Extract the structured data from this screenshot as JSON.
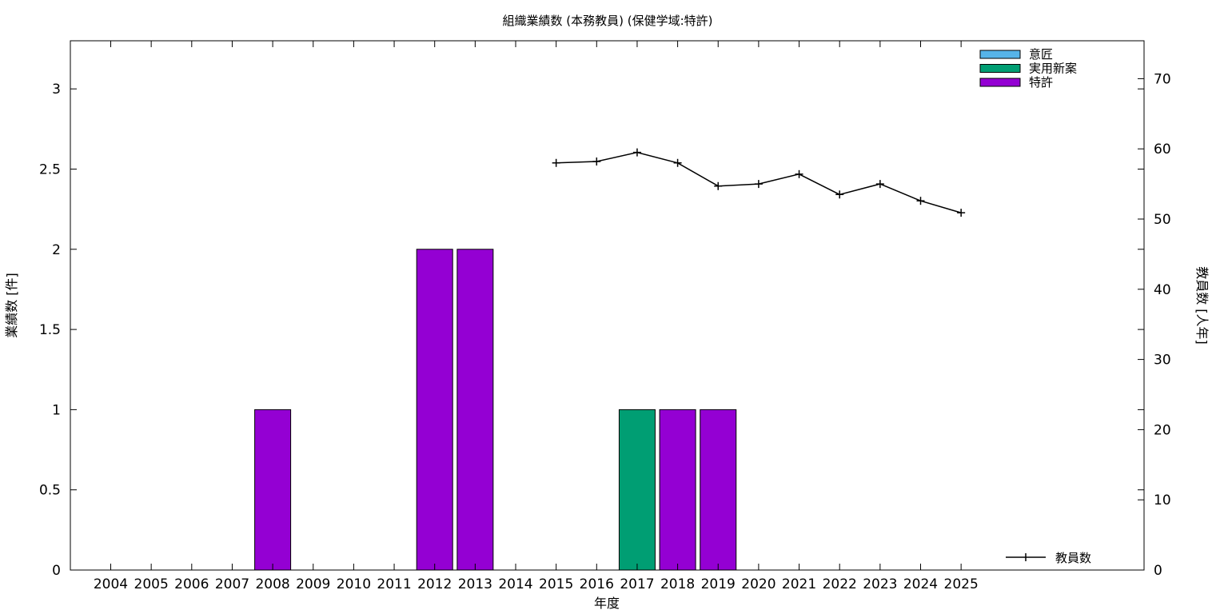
{
  "chart_data": {
    "type": "bar",
    "title": "組織業績数 (本務教員) (保健学域:特許)",
    "xlabel": "年度",
    "ylabel": "業績数 [件]",
    "y2label": "教員数 [人年]",
    "categories": [
      "2004",
      "2005",
      "2006",
      "2007",
      "2008",
      "2009",
      "2010",
      "2011",
      "2012",
      "2013",
      "2014",
      "2015",
      "2016",
      "2017",
      "2018",
      "2019",
      "2020",
      "2021",
      "2022",
      "2023",
      "2024",
      "2025"
    ],
    "ylim": [
      0,
      3.3
    ],
    "yticks": [
      "0",
      "0.5",
      "1",
      "1.5",
      "2",
      "2.5",
      "3"
    ],
    "y2lim": [
      0,
      75.4
    ],
    "y2ticks": [
      "0",
      "10",
      "20",
      "30",
      "40",
      "50",
      "60",
      "70"
    ],
    "series": [
      {
        "name": "意匠",
        "color": "#56b4e9",
        "values": [
          0,
          0,
          0,
          0,
          0,
          0,
          0,
          0,
          0,
          0,
          0,
          0,
          0,
          0,
          0,
          0,
          0,
          0,
          0,
          0,
          0,
          0
        ]
      },
      {
        "name": "実用新案",
        "color": "#009e73",
        "values": [
          0,
          0,
          0,
          0,
          0,
          0,
          0,
          0,
          0,
          0,
          0,
          0,
          0,
          1,
          0,
          0,
          0,
          0,
          0,
          0,
          0,
          0
        ]
      },
      {
        "name": "特許",
        "color": "#9400d3",
        "values": [
          0,
          0,
          0,
          0,
          1,
          0,
          0,
          0,
          2,
          2,
          0,
          0,
          0,
          0,
          1,
          1,
          0,
          0,
          0,
          0,
          0,
          0
        ]
      }
    ],
    "line_series": {
      "name": "教員数",
      "color": "#000000",
      "axis": "y2",
      "x": [
        "2015",
        "2016",
        "2017",
        "2018",
        "2019",
        "2020",
        "2021",
        "2022",
        "2023",
        "2024",
        "2025"
      ],
      "values": [
        58.0,
        58.2,
        59.5,
        58.0,
        54.7,
        55.0,
        56.4,
        53.5,
        55.0,
        52.6,
        50.9
      ]
    },
    "legend_position": "top-right",
    "line_legend_position": "bottom-right",
    "grid": false
  }
}
